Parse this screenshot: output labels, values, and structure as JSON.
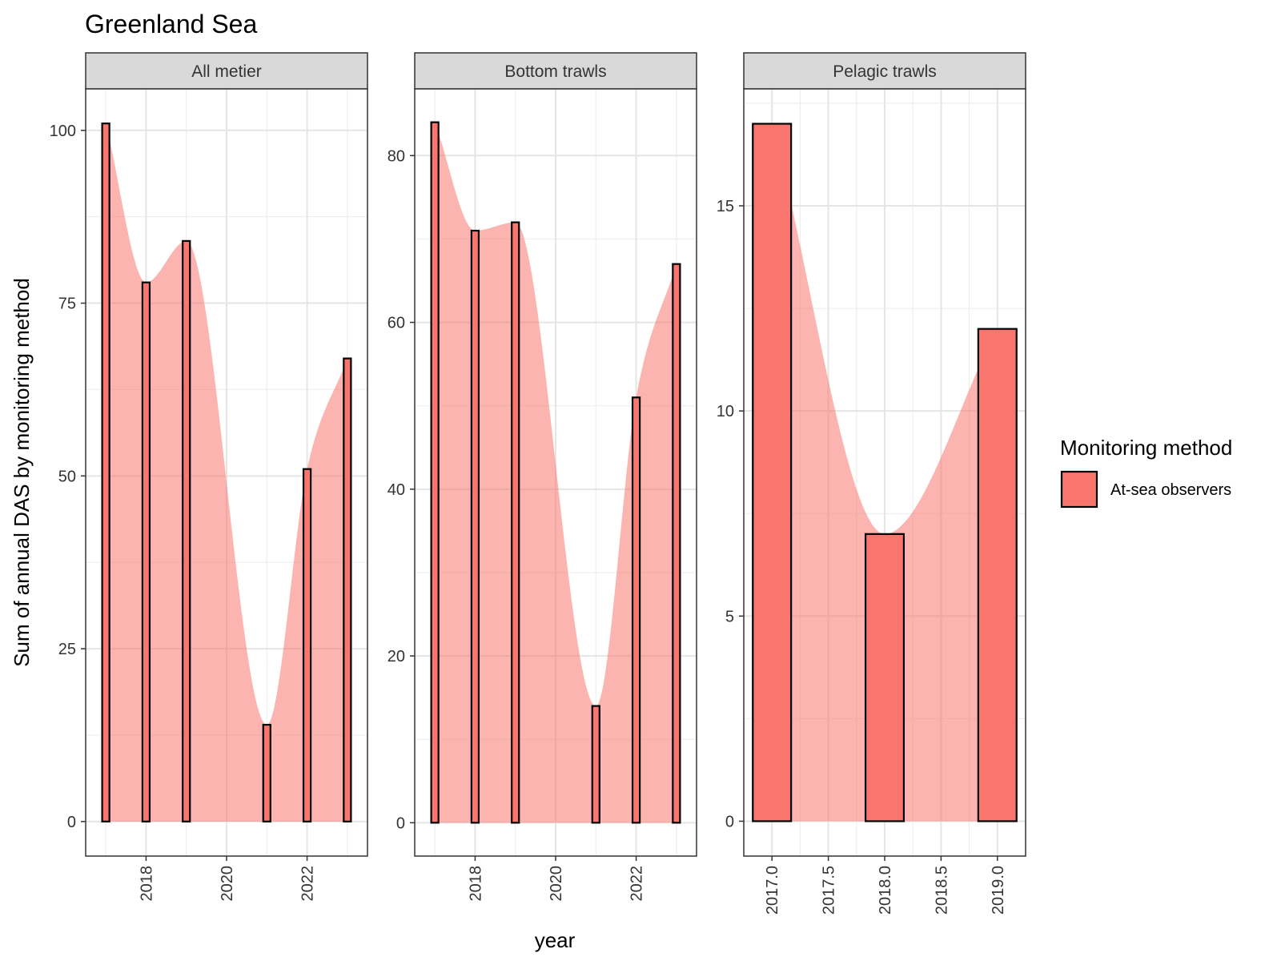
{
  "chart_data": {
    "type": "bar",
    "title": "Greenland Sea",
    "xlabel": "year",
    "ylabel": "Sum of annual DAS by monitoring method",
    "legend": {
      "title": "Monitoring method",
      "position": "right",
      "entries": [
        {
          "label": "At-sea observers",
          "color": "#F8766D"
        }
      ]
    },
    "colors": {
      "bar_fill": "#F8766D",
      "area_fill": "#F8766D",
      "bar_outline": "#000000"
    },
    "grid": true,
    "panels": [
      {
        "name": "All metier",
        "xlim": [
          2016.5,
          2023.5
        ],
        "ylim": [
          -5,
          106
        ],
        "x_ticks": [
          2018,
          2020,
          2022
        ],
        "x_tick_labels": [
          "2018",
          "2020",
          "2022"
        ],
        "y_ticks": [
          0,
          25,
          50,
          75,
          100
        ],
        "y_tick_labels": [
          "0",
          "25",
          "50",
          "75",
          "100"
        ],
        "series": [
          {
            "name": "At-sea observers",
            "x": [
              2017,
              2018,
              2019,
              2021,
              2022,
              2023
            ],
            "values": [
              101,
              78,
              84,
              14,
              51,
              67
            ]
          }
        ]
      },
      {
        "name": "Bottom trawls",
        "xlim": [
          2016.5,
          2023.5
        ],
        "ylim": [
          -4,
          88
        ],
        "x_ticks": [
          2018,
          2020,
          2022
        ],
        "x_tick_labels": [
          "2018",
          "2020",
          "2022"
        ],
        "y_ticks": [
          0,
          20,
          40,
          60,
          80
        ],
        "y_tick_labels": [
          "0",
          "20",
          "40",
          "60",
          "80"
        ],
        "series": [
          {
            "name": "At-sea observers",
            "x": [
              2017,
              2018,
              2019,
              2021,
              2022,
              2023
            ],
            "values": [
              84,
              71,
              72,
              14,
              51,
              67
            ]
          }
        ]
      },
      {
        "name": "Pelagic trawls",
        "xlim": [
          2016.75,
          2019.25
        ],
        "ylim": [
          -0.85,
          17.85
        ],
        "x_ticks": [
          2017.0,
          2017.5,
          2018.0,
          2018.5,
          2019.0
        ],
        "x_tick_labels": [
          "2017.0",
          "2017.5",
          "2018.0",
          "2018.5",
          "2019.0"
        ],
        "y_ticks": [
          0,
          5,
          10,
          15
        ],
        "y_tick_labels": [
          "0",
          "5",
          "10",
          "15"
        ],
        "series": [
          {
            "name": "At-sea observers",
            "x": [
              2017,
              2018,
              2019
            ],
            "values": [
              17,
              7,
              12
            ]
          }
        ]
      }
    ]
  }
}
